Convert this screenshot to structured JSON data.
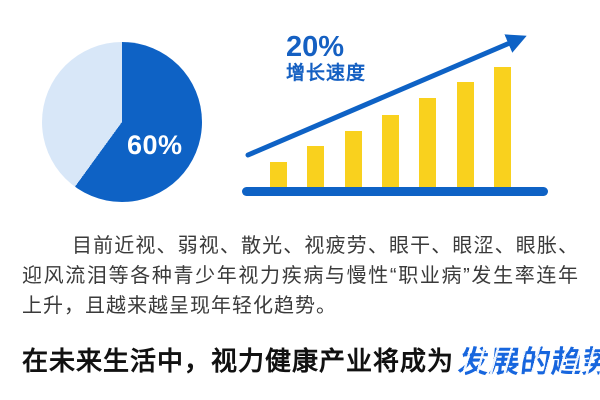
{
  "colors": {
    "brand_blue": "#0E62C5",
    "light_blue": "#D8E7F8",
    "accent_yellow": "#F9D11E",
    "annotation_blue": "#1560C2",
    "paragraph_gray": "#3A3A3A",
    "headline_black": "#111111",
    "headline_highlight_blue": "#1766DE",
    "pie_label_white": "#FFFFFF"
  },
  "chart_data": [
    {
      "type": "pie",
      "title": "",
      "slices": [
        {
          "label": "60%",
          "value": 60,
          "color": "#0E62C5"
        },
        {
          "label": "",
          "value": 40,
          "color": "#D8E7F8"
        }
      ],
      "label_shown": "60%",
      "label_color": "#FFFFFF",
      "start_angle_deg": 0,
      "direction": "clockwise",
      "legend": "none"
    },
    {
      "type": "bar",
      "categories": [
        "1",
        "2",
        "3",
        "4",
        "5",
        "6",
        "7"
      ],
      "values": [
        25,
        41,
        56,
        72,
        89,
        105,
        120
      ],
      "value_unit": "relative-height-px",
      "trend": "increasing",
      "bar_color": "#F9D11E",
      "baseline_color": "#0E62C5",
      "grid": "off",
      "axis_labels": "none",
      "annotation": {
        "headline": "20%",
        "subline": "增长速度",
        "color": "#1560C2"
      },
      "trend_arrow": {
        "direction": "up-right",
        "color": "#0E62C5"
      }
    }
  ],
  "paragraph": {
    "text": "目前近视、弱视、散光、视疲劳、眼干、眼涩、眼胀、迎风流泪等各种青少年视力疾病与慢性“职业病”发生率连年上升，且越来越呈现年轻化趋势。",
    "color": "#3A3A3A"
  },
  "headline": {
    "normal": "在未来生活中，视力健康产业将成为",
    "normal_color": "#111111",
    "highlight": "发展的趋势",
    "highlight_color": "#1766DE"
  }
}
